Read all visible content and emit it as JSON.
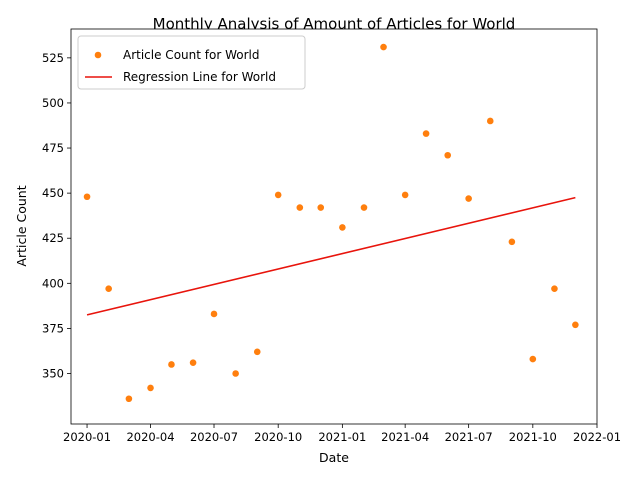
{
  "chart_data": {
    "type": "scatter",
    "title": "Monthly Analysis of Amount of Articles for World",
    "xlabel": "Date",
    "ylabel": "Article Count",
    "xlim": [
      "2019-12-09",
      "2022-01-01"
    ],
    "ylim": [
      322,
      541
    ],
    "x_ticks": [
      "2020-01",
      "2020-04",
      "2020-07",
      "2020-10",
      "2021-01",
      "2021-04",
      "2021-07",
      "2021-10",
      "2022-01"
    ],
    "y_ticks": [
      350,
      375,
      400,
      425,
      450,
      475,
      500,
      525
    ],
    "grid": false,
    "legend": {
      "placement": "upper-left",
      "entries": [
        "Article Count for World",
        "Regression Line for World"
      ]
    },
    "series": [
      {
        "name": "Article Count for World",
        "kind": "scatter",
        "color": "#ff7f0e",
        "points": [
          {
            "x": "2020-01-01",
            "y": 448
          },
          {
            "x": "2020-02-01",
            "y": 397
          },
          {
            "x": "2020-03-01",
            "y": 336
          },
          {
            "x": "2020-04-01",
            "y": 342
          },
          {
            "x": "2020-05-01",
            "y": 355
          },
          {
            "x": "2020-06-01",
            "y": 356
          },
          {
            "x": "2020-07-01",
            "y": 383
          },
          {
            "x": "2020-08-01",
            "y": 350
          },
          {
            "x": "2020-09-01",
            "y": 362
          },
          {
            "x": "2020-10-01",
            "y": 449
          },
          {
            "x": "2020-11-01",
            "y": 442
          },
          {
            "x": "2020-12-01",
            "y": 442
          },
          {
            "x": "2021-01-01",
            "y": 431
          },
          {
            "x": "2021-02-01",
            "y": 442
          },
          {
            "x": "2021-03-01",
            "y": 531
          },
          {
            "x": "2021-04-01",
            "y": 449
          },
          {
            "x": "2021-05-01",
            "y": 483
          },
          {
            "x": "2021-06-01",
            "y": 471
          },
          {
            "x": "2021-07-01",
            "y": 447
          },
          {
            "x": "2021-08-01",
            "y": 490
          },
          {
            "x": "2021-09-01",
            "y": 423
          },
          {
            "x": "2021-10-01",
            "y": 358
          },
          {
            "x": "2021-11-01",
            "y": 397
          },
          {
            "x": "2021-12-01",
            "y": 377
          }
        ]
      },
      {
        "name": "Regression Line for World",
        "kind": "line",
        "color": "#e8140c",
        "points": [
          {
            "x": "2020-01-01",
            "y": 382.5
          },
          {
            "x": "2021-12-01",
            "y": 447.5
          }
        ]
      }
    ]
  }
}
